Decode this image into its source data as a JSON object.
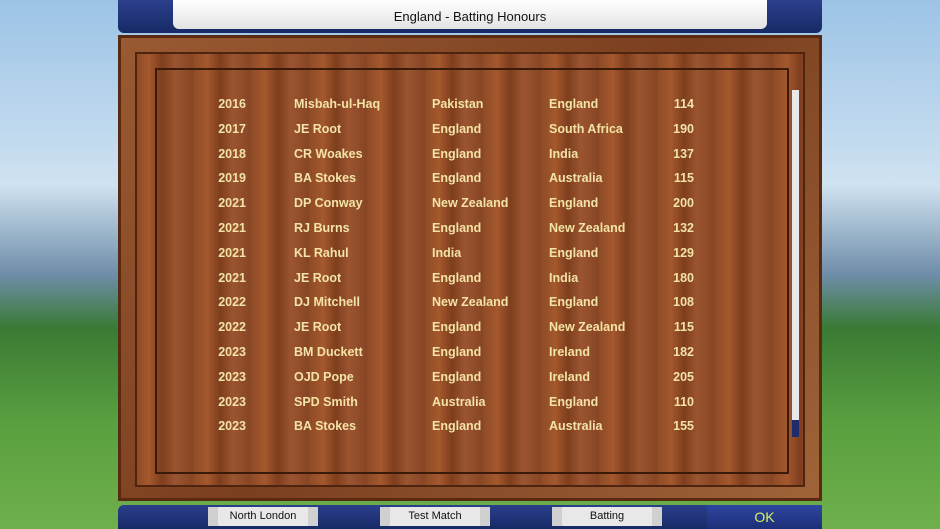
{
  "header": {
    "title": "England - Batting Honours"
  },
  "table": {
    "rows": [
      [
        2016,
        "Misbah-ul-Haq",
        "Pakistan",
        "England",
        114
      ],
      [
        2017,
        "JE Root",
        "England",
        "South Africa",
        190
      ],
      [
        2018,
        "CR Woakes",
        "England",
        "India",
        137
      ],
      [
        2019,
        "BA Stokes",
        "England",
        "Australia",
        115
      ],
      [
        2021,
        "DP Conway",
        "New Zealand",
        "England",
        200
      ],
      [
        2021,
        "RJ Burns",
        "England",
        "New Zealand",
        132
      ],
      [
        2021,
        "KL Rahul",
        "India",
        "England",
        129
      ],
      [
        2021,
        "JE Root",
        "England",
        "India",
        180
      ],
      [
        2022,
        "DJ Mitchell",
        "New Zealand",
        "England",
        108
      ],
      [
        2022,
        "JE Root",
        "England",
        "New Zealand",
        115
      ],
      [
        2023,
        "BM Duckett",
        "England",
        "Ireland",
        182
      ],
      [
        2023,
        "OJD Pope",
        "England",
        "Ireland",
        205
      ],
      [
        2023,
        "SPD Smith",
        "Australia",
        "England",
        110
      ],
      [
        2023,
        "BA Stokes",
        "England",
        "Australia",
        155
      ]
    ]
  },
  "footer": {
    "dropdowns": [
      "North London",
      "Test Match",
      "Batting"
    ],
    "ok": "OK"
  }
}
